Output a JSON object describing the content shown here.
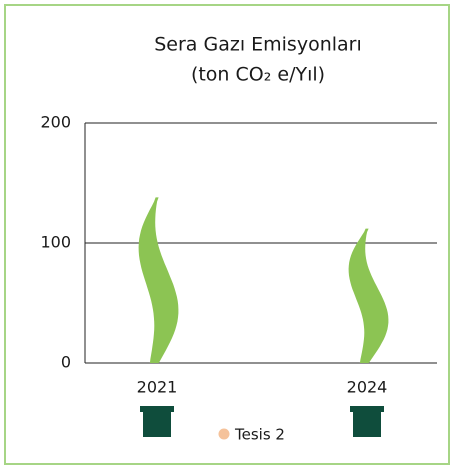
{
  "chart_data": {
    "type": "pictorial-bar",
    "title": "Sera Gazı Emisyonları",
    "subtitle": "(ton CO₂ e/Yıl)",
    "categories": [
      "2021",
      "2024"
    ],
    "series": [
      {
        "name": "Tesis 2",
        "color": "#8cc453",
        "values": [
          138,
          112
        ]
      }
    ],
    "legend_color": "#f5c29a",
    "ylim": [
      0,
      200
    ],
    "yticks": [
      0,
      100,
      200
    ],
    "grid": true
  }
}
